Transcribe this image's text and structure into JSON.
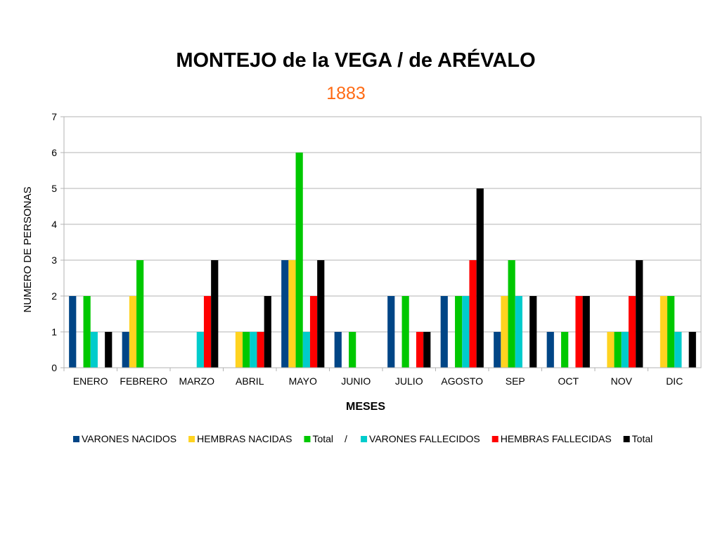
{
  "chart_data": {
    "type": "bar",
    "title": "MONTEJO de la VEGA / de ARÉVALO",
    "subtitle": "1883",
    "xlabel": "MESES",
    "ylabel": "NUMERO DE PERSONAS",
    "ylim": [
      0,
      7
    ],
    "yticks": [
      "0",
      "1",
      "2",
      "3",
      "4",
      "5",
      "6",
      "7"
    ],
    "grid": true,
    "legend_position": "bottom",
    "legend_separator": "/",
    "categories": [
      "ENERO",
      "FEBRERO",
      "MARZO",
      "ABRIL",
      "MAYO",
      "JUNIO",
      "JULIO",
      "AGOSTO",
      "SEP",
      "OCT",
      "NOV",
      "DIC"
    ],
    "series": [
      {
        "name": "VARONES NACIDOS",
        "color": "#004586",
        "values": [
          2,
          1,
          0,
          0,
          3,
          1,
          2,
          2,
          1,
          1,
          0,
          0
        ]
      },
      {
        "name": "HEMBRAS NACIDAS",
        "color": "#ffd320",
        "values": [
          0,
          2,
          0,
          1,
          3,
          0,
          0,
          0,
          2,
          0,
          1,
          2
        ]
      },
      {
        "name": "Total",
        "color": "#00c800",
        "values": [
          2,
          3,
          0,
          1,
          6,
          1,
          2,
          2,
          3,
          1,
          1,
          2
        ]
      },
      {
        "name": "VARONES FALLECIDOS",
        "color": "#00cccc",
        "values": [
          1,
          0,
          1,
          1,
          1,
          0,
          0,
          2,
          2,
          0,
          1,
          1
        ]
      },
      {
        "name": "HEMBRAS FALLECIDAS",
        "color": "#ff0000",
        "values": [
          0,
          0,
          2,
          1,
          2,
          0,
          1,
          3,
          0,
          2,
          2,
          0
        ]
      },
      {
        "name": "Total",
        "color": "#000000",
        "values": [
          1,
          0,
          3,
          2,
          3,
          0,
          1,
          5,
          2,
          2,
          3,
          1
        ]
      }
    ]
  }
}
